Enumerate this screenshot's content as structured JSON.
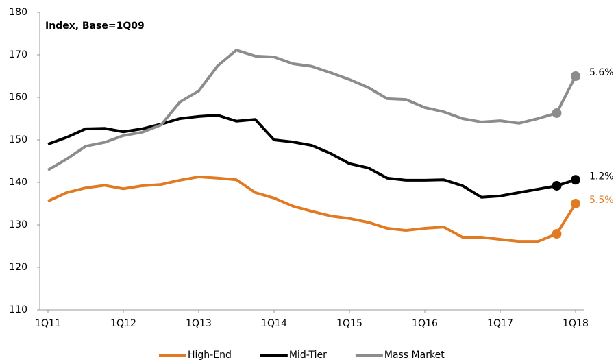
{
  "chart_data": {
    "type": "line",
    "title": "Index, Base=1Q09",
    "categories": [
      "1Q11",
      null,
      null,
      null,
      "1Q12",
      null,
      null,
      null,
      "1Q13",
      null,
      null,
      null,
      "1Q14",
      null,
      null,
      null,
      "1Q15",
      null,
      null,
      null,
      "1Q16",
      null,
      null,
      null,
      "1Q17",
      null,
      null,
      null,
      "1Q18"
    ],
    "series": [
      {
        "name": "High-End",
        "color": "#e07b24",
        "end_label": "5.5%",
        "values": [
          135.6,
          137.6,
          138.7,
          139.3,
          138.5,
          139.2,
          139.5,
          140.5,
          141.3,
          141,
          140.6,
          137.6,
          136.3,
          134.4,
          133.2,
          132.1,
          131.5,
          130.6,
          129.2,
          128.7,
          129.2,
          129.5,
          127.1,
          127.1,
          126.6,
          126.1,
          126.1,
          127.9,
          135
        ]
      },
      {
        "name": "Mid-Tier",
        "color": "#000000",
        "end_label": "1.2%",
        "values": [
          149,
          150.6,
          152.6,
          152.7,
          151.9,
          152.6,
          153.7,
          155,
          155.5,
          155.8,
          154.4,
          154.8,
          150,
          149.5,
          148.7,
          146.8,
          144.4,
          143.4,
          141,
          140.5,
          140.5,
          140.6,
          139.2,
          136.5,
          136.8,
          137.6,
          138.4,
          139.2,
          140.6
        ]
      },
      {
        "name": "Mass Market",
        "color": "#8c8c8c",
        "end_label": "5.6%",
        "values": [
          142.9,
          145.5,
          148.5,
          149.4,
          151,
          151.8,
          153.5,
          158.9,
          161.5,
          167.4,
          171.1,
          169.7,
          169.5,
          167.9,
          167.3,
          165.8,
          164.2,
          162.3,
          159.7,
          159.5,
          157.6,
          156.6,
          155,
          154.2,
          154.5,
          153.9,
          155,
          156.3,
          165
        ]
      }
    ],
    "ylim": [
      110,
      180
    ],
    "yticks": [
      110,
      120,
      130,
      140,
      150,
      160,
      170,
      180
    ],
    "grid": false
  }
}
